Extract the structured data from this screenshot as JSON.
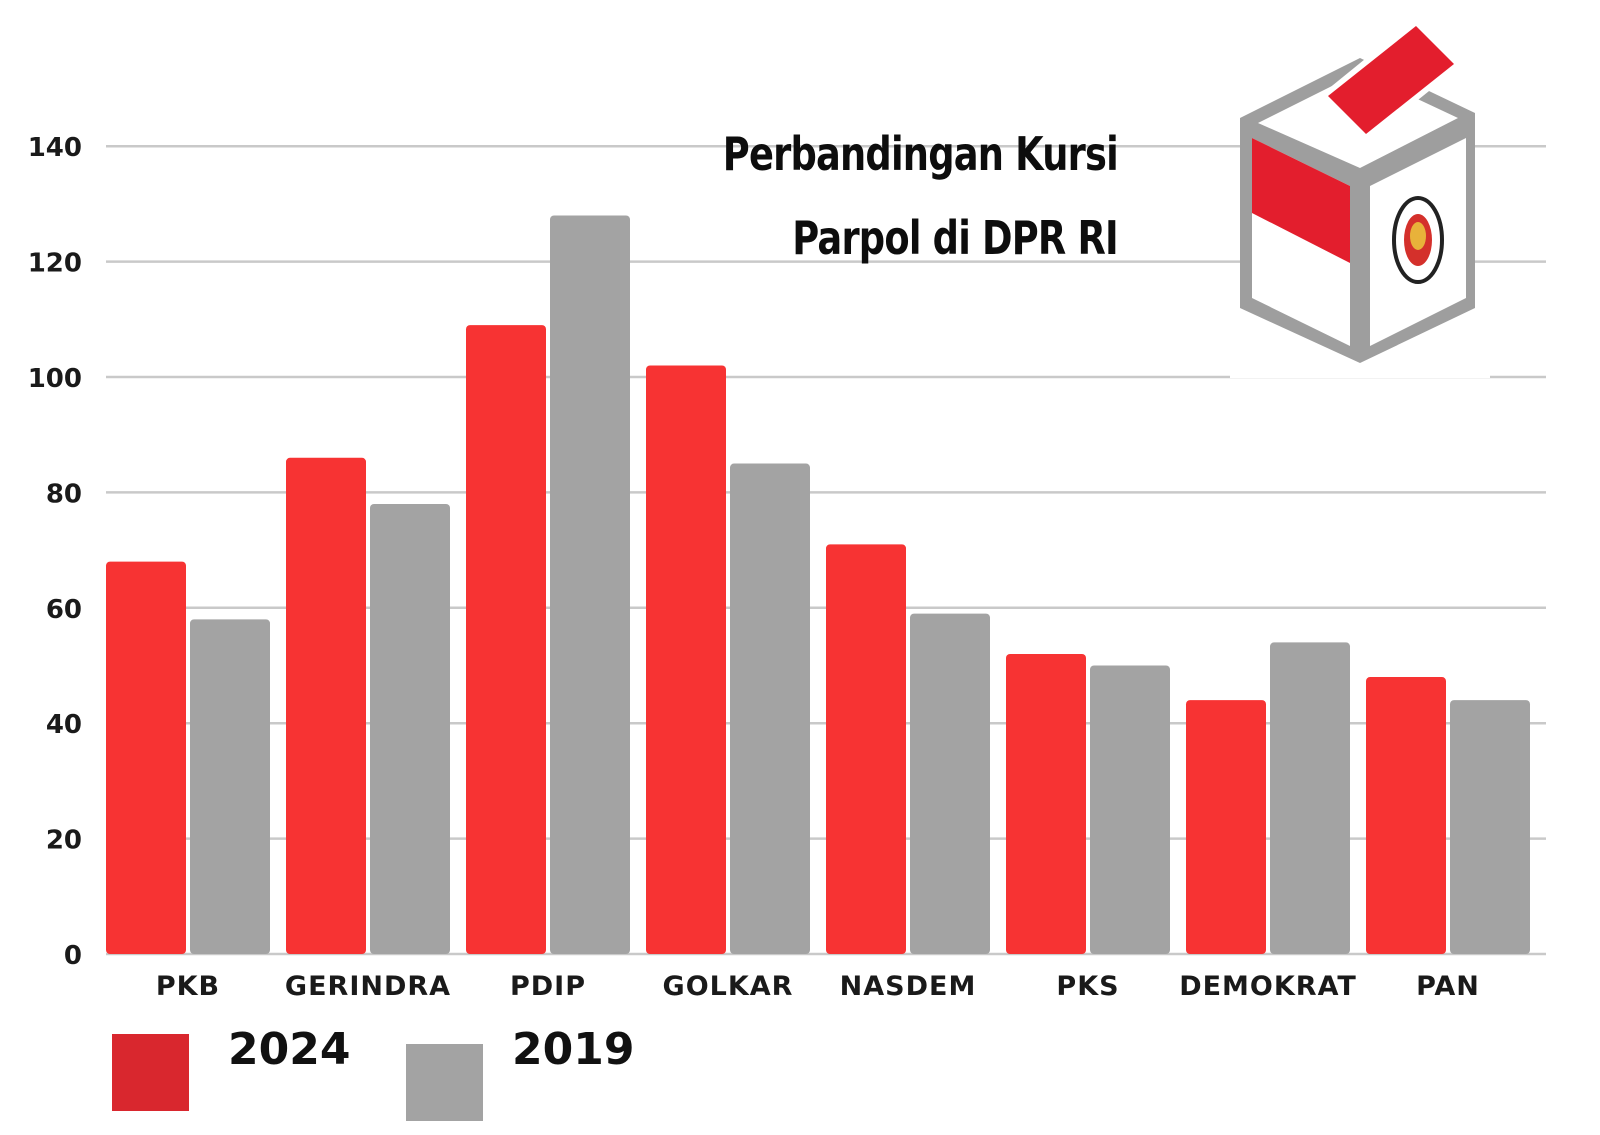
{
  "title_lines": [
    "Perbandingan Kursi",
    "Parpol di DPR RI"
  ],
  "colors": {
    "series_2024": "#f73333",
    "series_2019": "#a3a3a3",
    "grid": "#c9c9c9",
    "legend_2024": "#d9272e"
  },
  "chart_data": {
    "type": "bar",
    "title": "Perbandingan Kursi Parpol di DPR RI",
    "categories": [
      "PKB",
      "GERINDRA",
      "PDIP",
      "GOLKAR",
      "NASDEM",
      "PKS",
      "DEMOKRAT",
      "PAN"
    ],
    "series": [
      {
        "name": "2024",
        "values": [
          68,
          86,
          109,
          102,
          71,
          52,
          44,
          48
        ]
      },
      {
        "name": "2019",
        "values": [
          58,
          78,
          128,
          85,
          59,
          50,
          54,
          44
        ]
      }
    ],
    "yticks": [
      "0",
      "20",
      "40",
      "60",
      "80",
      "100",
      "120",
      "140"
    ],
    "ylim": [
      0,
      140
    ],
    "grid": true,
    "legend_position": "bottom-left"
  },
  "icon": "ballot-box-icon"
}
